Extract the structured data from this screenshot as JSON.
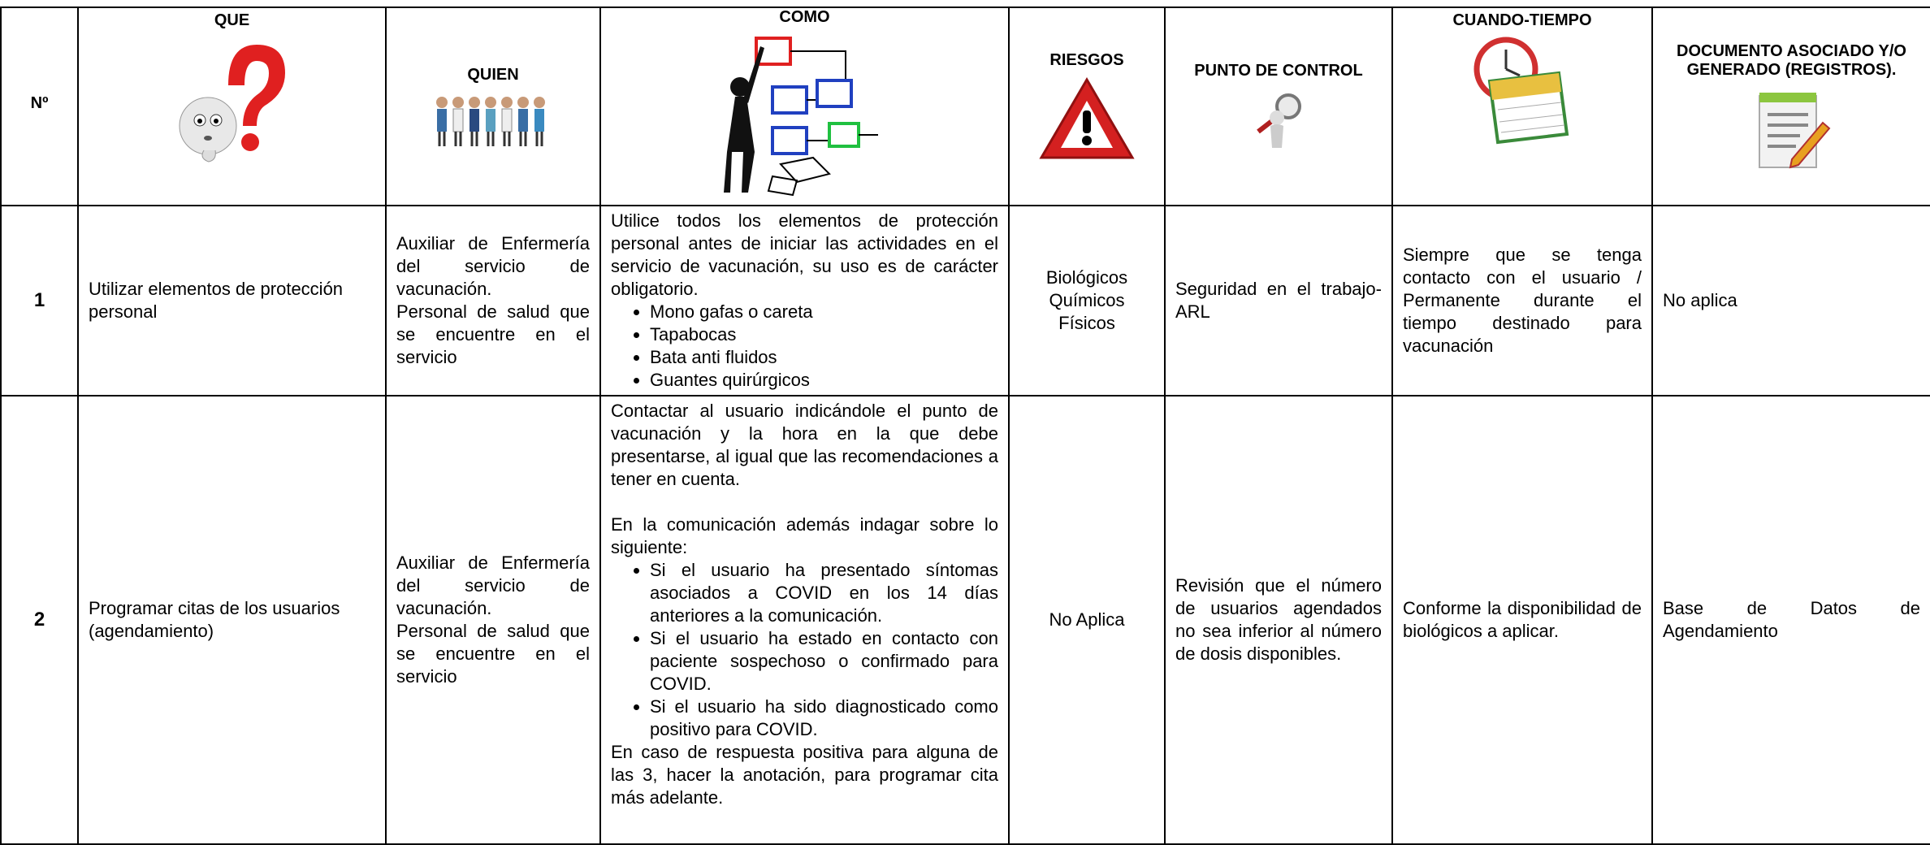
{
  "table": {
    "headers": [
      "Nº",
      "QUE",
      "QUIEN",
      "COMO",
      "RIESGOS",
      "PUNTO DE CONTROL",
      "CUANDO-TIEMPO",
      "DOCUMENTO ASOCIADO Y/O GENERADO (REGISTROS)."
    ],
    "rows": [
      {
        "n": "1",
        "que": "Utilizar elementos de protección personal",
        "quien": [
          "Auxiliar de Enfermería del servicio de vacunación.",
          "Personal de salud que se encuentre en el servicio"
        ],
        "como": [
          "Utilice todos los elementos de protección personal antes de iniciar las actividades en el servicio de vacunación, su uso es de carácter obligatorio.",
          [
            "Mono gafas o careta",
            "Tapabocas",
            "Bata anti fluidos",
            "Guantes quirúrgicos"
          ]
        ],
        "riesgos": [
          "Biológicos",
          "Químicos",
          "Físicos"
        ],
        "punto": "Seguridad en el trabajo- ARL",
        "cuando": "Siempre que se tenga contacto con el usuario / Permanente durante el tiempo destinado para vacunación",
        "documento": "No aplica"
      },
      {
        "n": "2",
        "que": "Programar citas de los usuarios (agendamiento)",
        "quien": [
          "Auxiliar de Enfermería del servicio de vacunación.",
          "Personal de salud que se encuentre en el servicio"
        ],
        "como": [
          "Contactar al usuario indicándole el punto de vacunación y la hora en la que debe presentarse, al igual que las recomendaciones a tener en cuenta.",
          "En la comunicación además indagar sobre lo siguiente:",
          [
            "Si el usuario ha presentado síntomas asociados a COVID en los 14 días anteriores a la comunicación.",
            "Si el usuario ha estado en contacto con paciente sospechoso o confirmado para COVID.",
            "Si el usuario ha sido diagnosticado como positivo para COVID."
          ],
          "En caso de respuesta positiva para alguna de las 3, hacer la anotación, para programar cita más adelante."
        ],
        "riesgos": [
          "No Aplica"
        ],
        "punto": "Revisión que el número de usuarios agendados no sea inferior al número de dosis disponibles.",
        "cuando": "Conforme la disponibilidad de biológicos a aplicar.",
        "documento": "Base de Datos de Agendamiento"
      }
    ]
  }
}
